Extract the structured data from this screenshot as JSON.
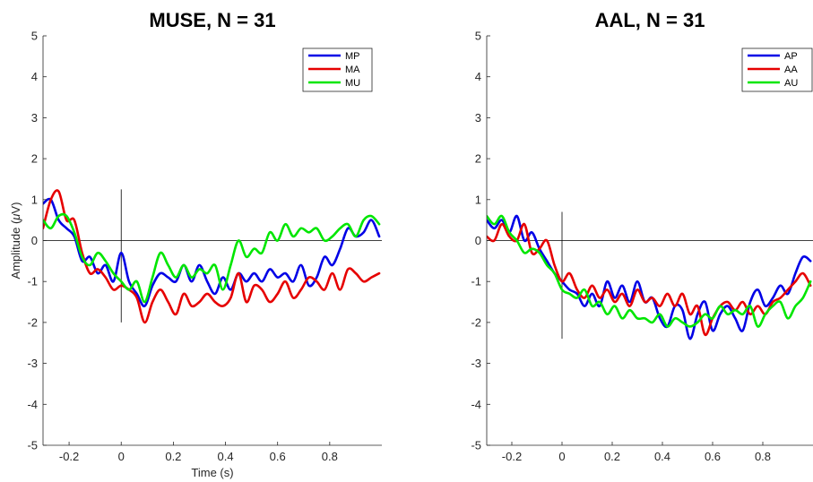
{
  "chart_data": [
    {
      "type": "line",
      "title": "MUSE, N = 31",
      "xlabel": "Time (s)",
      "ylabel_main": "Amplitude (",
      "ylabel_greek": "μ",
      "ylabel_tail": "V)",
      "xlim": [
        -0.3,
        1.0
      ],
      "ylim": [
        -5,
        5
      ],
      "xticks": [
        -0.2,
        0,
        0.2,
        0.4,
        0.6,
        0.8
      ],
      "xtick_labels": [
        "-0.2",
        "0",
        "0.2",
        "0.4",
        "0.6",
        "0.8"
      ],
      "yticks": [
        -5,
        -4,
        -3,
        -2,
        -1,
        0,
        1,
        2,
        3,
        4,
        5
      ],
      "ytick_labels": [
        "-5",
        "-4",
        "-3",
        "-2",
        "-1",
        "0",
        "1",
        "2",
        "3",
        "4",
        "5"
      ],
      "grid": false,
      "legend_position": "top-right",
      "zero_marker": {
        "x": 0,
        "y_range": [
          -2,
          1.25
        ]
      },
      "series": [
        {
          "name": "MP",
          "color": "#0000e6",
          "x": [
            -0.3,
            -0.27,
            -0.24,
            -0.21,
            -0.18,
            -0.15,
            -0.12,
            -0.09,
            -0.06,
            -0.03,
            0.0,
            0.03,
            0.06,
            0.09,
            0.12,
            0.15,
            0.18,
            0.21,
            0.24,
            0.27,
            0.3,
            0.33,
            0.36,
            0.39,
            0.42,
            0.45,
            0.48,
            0.51,
            0.54,
            0.57,
            0.6,
            0.63,
            0.66,
            0.69,
            0.72,
            0.75,
            0.78,
            0.81,
            0.84,
            0.87,
            0.9,
            0.93,
            0.96,
            0.99
          ],
          "y": [
            0.9,
            1.0,
            0.5,
            0.3,
            0.1,
            -0.5,
            -0.4,
            -0.8,
            -0.6,
            -1.0,
            -0.3,
            -1.0,
            -1.3,
            -1.6,
            -1.1,
            -0.8,
            -0.9,
            -1.0,
            -0.6,
            -1.0,
            -0.6,
            -1.0,
            -1.3,
            -0.9,
            -1.2,
            -0.8,
            -1.0,
            -0.8,
            -1.0,
            -0.7,
            -0.9,
            -0.8,
            -1.0,
            -0.6,
            -1.1,
            -0.9,
            -0.4,
            -0.6,
            -0.2,
            0.3,
            0.1,
            0.2,
            0.5,
            0.1
          ]
        },
        {
          "name": "MA",
          "color": "#e60000",
          "x": [
            -0.3,
            -0.27,
            -0.24,
            -0.21,
            -0.18,
            -0.15,
            -0.12,
            -0.09,
            -0.06,
            -0.03,
            0.0,
            0.03,
            0.06,
            0.09,
            0.12,
            0.15,
            0.18,
            0.21,
            0.24,
            0.27,
            0.3,
            0.33,
            0.36,
            0.39,
            0.42,
            0.45,
            0.48,
            0.51,
            0.54,
            0.57,
            0.6,
            0.63,
            0.66,
            0.69,
            0.72,
            0.75,
            0.78,
            0.81,
            0.84,
            0.87,
            0.9,
            0.93,
            0.96,
            0.99
          ],
          "y": [
            0.3,
            1.0,
            1.2,
            0.5,
            0.5,
            -0.3,
            -0.8,
            -0.7,
            -0.9,
            -1.2,
            -1.1,
            -1.2,
            -1.4,
            -2.0,
            -1.5,
            -1.2,
            -1.5,
            -1.8,
            -1.3,
            -1.6,
            -1.5,
            -1.3,
            -1.5,
            -1.6,
            -1.4,
            -0.8,
            -1.5,
            -1.1,
            -1.2,
            -1.5,
            -1.3,
            -1.0,
            -1.4,
            -1.2,
            -0.9,
            -1.0,
            -1.2,
            -0.8,
            -1.2,
            -0.7,
            -0.8,
            -1.0,
            -0.9,
            -0.8
          ]
        },
        {
          "name": "MU",
          "color": "#00e600",
          "x": [
            -0.3,
            -0.27,
            -0.24,
            -0.21,
            -0.18,
            -0.15,
            -0.12,
            -0.09,
            -0.06,
            -0.03,
            0.0,
            0.03,
            0.06,
            0.09,
            0.12,
            0.15,
            0.18,
            0.21,
            0.24,
            0.27,
            0.3,
            0.33,
            0.36,
            0.39,
            0.42,
            0.45,
            0.48,
            0.51,
            0.54,
            0.57,
            0.6,
            0.63,
            0.66,
            0.69,
            0.72,
            0.75,
            0.78,
            0.81,
            0.84,
            0.87,
            0.9,
            0.93,
            0.96,
            0.99
          ],
          "y": [
            0.5,
            0.3,
            0.6,
            0.6,
            0.2,
            -0.4,
            -0.6,
            -0.3,
            -0.5,
            -0.8,
            -1.0,
            -1.2,
            -1.0,
            -1.5,
            -0.9,
            -0.3,
            -0.6,
            -0.9,
            -0.6,
            -0.9,
            -0.7,
            -0.8,
            -0.6,
            -1.2,
            -0.6,
            0.0,
            -0.4,
            -0.2,
            -0.3,
            0.2,
            0.0,
            0.4,
            0.1,
            0.3,
            0.2,
            0.3,
            0.0,
            0.1,
            0.3,
            0.4,
            0.1,
            0.5,
            0.6,
            0.4
          ]
        }
      ]
    },
    {
      "type": "line",
      "title": "AAL, N = 31",
      "xlabel": "",
      "xlim": [
        -0.3,
        1.0
      ],
      "ylim": [
        -5,
        5
      ],
      "xticks": [
        -0.2,
        0,
        0.2,
        0.4,
        0.6,
        0.8
      ],
      "xtick_labels": [
        "-0.2",
        "0",
        "0.2",
        "0.4",
        "0.6",
        "0.8"
      ],
      "yticks": [
        -5,
        -4,
        -3,
        -2,
        -1,
        0,
        1,
        2,
        3,
        4,
        5
      ],
      "ytick_labels": [
        "-5",
        "-4",
        "-3",
        "-2",
        "-1",
        "0",
        "1",
        "2",
        "3",
        "4",
        "5"
      ],
      "grid": false,
      "legend_position": "top-right",
      "zero_marker": {
        "x": 0,
        "y_range": [
          -2.4,
          0.7
        ]
      },
      "series": [
        {
          "name": "AP",
          "color": "#0000e6",
          "x": [
            -0.3,
            -0.27,
            -0.24,
            -0.21,
            -0.18,
            -0.15,
            -0.12,
            -0.09,
            -0.06,
            -0.03,
            0.0,
            0.03,
            0.06,
            0.09,
            0.12,
            0.15,
            0.18,
            0.21,
            0.24,
            0.27,
            0.3,
            0.33,
            0.36,
            0.39,
            0.42,
            0.45,
            0.48,
            0.51,
            0.54,
            0.57,
            0.6,
            0.63,
            0.66,
            0.69,
            0.72,
            0.75,
            0.78,
            0.81,
            0.84,
            0.87,
            0.9,
            0.93,
            0.96,
            0.99
          ],
          "y": [
            0.5,
            0.3,
            0.5,
            0.2,
            0.6,
            0.0,
            0.2,
            -0.2,
            -0.5,
            -0.8,
            -1.0,
            -1.2,
            -1.3,
            -1.6,
            -1.3,
            -1.6,
            -1.0,
            -1.4,
            -1.1,
            -1.5,
            -1.0,
            -1.5,
            -1.4,
            -1.9,
            -2.1,
            -1.6,
            -1.7,
            -2.4,
            -1.8,
            -1.5,
            -2.2,
            -1.8,
            -1.6,
            -1.9,
            -2.2,
            -1.5,
            -1.2,
            -1.6,
            -1.4,
            -1.1,
            -1.3,
            -0.8,
            -0.4,
            -0.5
          ]
        },
        {
          "name": "AA",
          "color": "#e60000",
          "x": [
            -0.3,
            -0.27,
            -0.24,
            -0.21,
            -0.18,
            -0.15,
            -0.12,
            -0.09,
            -0.06,
            -0.03,
            0.0,
            0.03,
            0.06,
            0.09,
            0.12,
            0.15,
            0.18,
            0.21,
            0.24,
            0.27,
            0.3,
            0.33,
            0.36,
            0.39,
            0.42,
            0.45,
            0.48,
            0.51,
            0.54,
            0.57,
            0.6,
            0.63,
            0.66,
            0.69,
            0.72,
            0.75,
            0.78,
            0.81,
            0.84,
            0.87,
            0.9,
            0.93,
            0.96,
            0.99
          ],
          "y": [
            0.1,
            0.0,
            0.4,
            0.1,
            0.0,
            0.4,
            -0.3,
            -0.2,
            0.0,
            -0.6,
            -1.0,
            -0.8,
            -1.2,
            -1.4,
            -1.1,
            -1.4,
            -1.2,
            -1.5,
            -1.3,
            -1.6,
            -1.2,
            -1.5,
            -1.4,
            -1.6,
            -1.3,
            -1.6,
            -1.3,
            -1.8,
            -1.6,
            -2.3,
            -1.9,
            -1.6,
            -1.5,
            -1.7,
            -1.5,
            -1.8,
            -1.6,
            -1.8,
            -1.5,
            -1.4,
            -1.2,
            -1.0,
            -0.8,
            -1.1
          ]
        },
        {
          "name": "AU",
          "color": "#00e600",
          "x": [
            -0.3,
            -0.27,
            -0.24,
            -0.21,
            -0.18,
            -0.15,
            -0.12,
            -0.09,
            -0.06,
            -0.03,
            0.0,
            0.03,
            0.06,
            0.09,
            0.12,
            0.15,
            0.18,
            0.21,
            0.24,
            0.27,
            0.3,
            0.33,
            0.36,
            0.39,
            0.42,
            0.45,
            0.48,
            0.51,
            0.54,
            0.57,
            0.6,
            0.63,
            0.66,
            0.69,
            0.72,
            0.75,
            0.78,
            0.81,
            0.84,
            0.87,
            0.9,
            0.93,
            0.96,
            0.99
          ],
          "y": [
            0.6,
            0.4,
            0.6,
            0.2,
            0.0,
            -0.3,
            -0.2,
            -0.3,
            -0.6,
            -0.8,
            -1.2,
            -1.3,
            -1.4,
            -1.2,
            -1.6,
            -1.5,
            -1.8,
            -1.6,
            -1.9,
            -1.7,
            -1.9,
            -1.9,
            -2.0,
            -1.8,
            -2.1,
            -1.9,
            -2.0,
            -2.1,
            -2.0,
            -1.8,
            -1.9,
            -1.6,
            -1.8,
            -1.7,
            -1.8,
            -1.6,
            -2.1,
            -1.8,
            -1.6,
            -1.5,
            -1.9,
            -1.6,
            -1.4,
            -1.0
          ]
        }
      ]
    }
  ]
}
